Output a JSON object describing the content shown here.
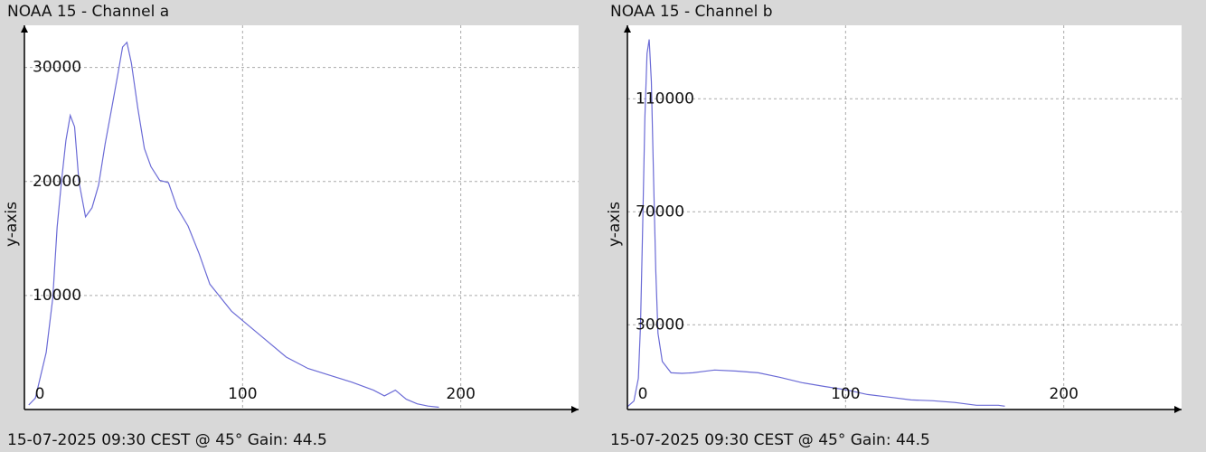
{
  "chart_data": [
    {
      "type": "line",
      "title": "NOAA 15 - Channel a",
      "y_label": "y-axis",
      "caption": "15-07-2025 09:30 CEST @ 45° Gain: 44.5",
      "x": [
        2,
        5,
        10,
        13,
        15,
        17,
        19,
        21,
        23,
        25,
        28,
        31,
        34,
        37,
        40,
        43,
        45,
        47,
        49,
        52,
        55,
        58,
        62,
        66,
        70,
        75,
        80,
        85,
        90,
        95,
        100,
        110,
        120,
        130,
        140,
        150,
        160,
        165,
        170,
        175,
        180,
        185,
        190
      ],
      "values": [
        400,
        1000,
        5000,
        9800,
        16000,
        20000,
        23600,
        25800,
        24800,
        20000,
        16900,
        17700,
        19700,
        23300,
        26400,
        29600,
        31800,
        32200,
        30400,
        26400,
        22900,
        21300,
        20100,
        19900,
        17700,
        16100,
        13700,
        11000,
        9800,
        8600,
        7800,
        6200,
        4600,
        3600,
        3000,
        2400,
        1700,
        1200,
        1700,
        900,
        500,
        300,
        200
      ],
      "color": "#6b6bd6",
      "xlim": [
        0,
        254
      ],
      "ylim": [
        0,
        33700
      ],
      "xticks": [
        0,
        100,
        200
      ],
      "yticks": [
        10000,
        20000,
        30000
      ],
      "grid": true
    },
    {
      "type": "line",
      "title": "NOAA 15 - Channel b",
      "y_label": "y-axis",
      "caption": "15-07-2025 09:30 CEST @ 45° Gain: 44.5",
      "x": [
        0,
        3,
        5,
        6,
        7,
        8,
        9,
        10,
        11,
        12,
        13,
        14,
        16,
        20,
        25,
        30,
        35,
        40,
        50,
        60,
        70,
        80,
        90,
        100,
        110,
        120,
        130,
        140,
        150,
        160,
        170,
        173
      ],
      "values": [
        1000,
        3000,
        11000,
        30000,
        65000,
        103000,
        126000,
        131000,
        116000,
        81000,
        49000,
        27000,
        17000,
        13000,
        12800,
        13000,
        13500,
        14000,
        13600,
        13000,
        11400,
        9500,
        8200,
        7000,
        5300,
        4400,
        3400,
        3100,
        2500,
        1500,
        1500,
        1200
      ],
      "color": "#6b6bd6",
      "xlim": [
        0,
        254
      ],
      "ylim": [
        0,
        136000
      ],
      "xticks": [
        0,
        100,
        200
      ],
      "yticks": [
        30000,
        70000,
        110000
      ],
      "grid": true
    }
  ]
}
